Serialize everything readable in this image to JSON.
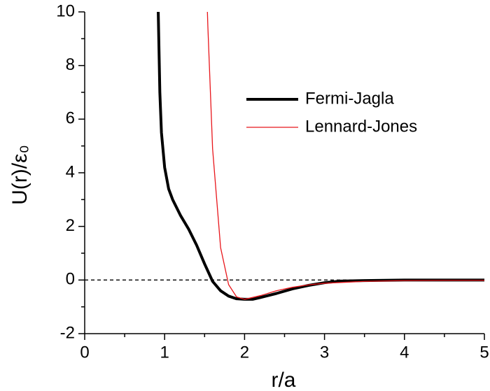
{
  "chart_data": {
    "type": "line",
    "xlabel": "r/a",
    "ylabel": "U(r)/ε₀",
    "xlim": [
      0,
      5
    ],
    "ylim": [
      -2,
      10
    ],
    "xticks": [
      0,
      1,
      2,
      3,
      4,
      5
    ],
    "yticks": [
      -2,
      0,
      2,
      4,
      6,
      8,
      10
    ],
    "xminorticks": [
      0.5,
      1.5,
      2.5,
      3.5,
      4.5
    ],
    "yminorticks": [
      -1,
      1,
      3,
      5,
      7,
      9
    ],
    "reference_line": {
      "y": 0,
      "style": "dashed",
      "color": "#000000"
    },
    "legend": "upper right",
    "series": [
      {
        "name": "Fermi-Jagla",
        "color": "#000000",
        "width": 4,
        "x": [
          0.92,
          0.94,
          0.96,
          1.0,
          1.05,
          1.1,
          1.2,
          1.3,
          1.4,
          1.5,
          1.6,
          1.7,
          1.8,
          1.9,
          2.0,
          2.1,
          2.2,
          2.4,
          2.6,
          2.8,
          3.0,
          3.2,
          3.5,
          4.0,
          4.5,
          5.0
        ],
        "values": [
          10,
          7,
          5.5,
          4.2,
          3.4,
          3.0,
          2.4,
          1.9,
          1.3,
          0.6,
          -0.05,
          -0.4,
          -0.6,
          -0.7,
          -0.72,
          -0.72,
          -0.65,
          -0.5,
          -0.33,
          -0.2,
          -0.1,
          -0.04,
          -0.02,
          0,
          0,
          0
        ]
      },
      {
        "name": "Lennard-Jones",
        "color": "#e8161b",
        "width": 1.3,
        "x": [
          1.535,
          1.54,
          1.6,
          1.7,
          1.8,
          1.9,
          2.0,
          2.2,
          2.4,
          2.6,
          2.8,
          3.0,
          3.5,
          4.0,
          4.5,
          5.0
        ],
        "values": [
          10,
          9.51,
          4.89,
          1.21,
          -0.17,
          -0.63,
          -0.72,
          -0.58,
          -0.4,
          -0.27,
          -0.18,
          -0.12,
          -0.05,
          -0.02,
          -0.01,
          -0.01
        ]
      }
    ]
  }
}
